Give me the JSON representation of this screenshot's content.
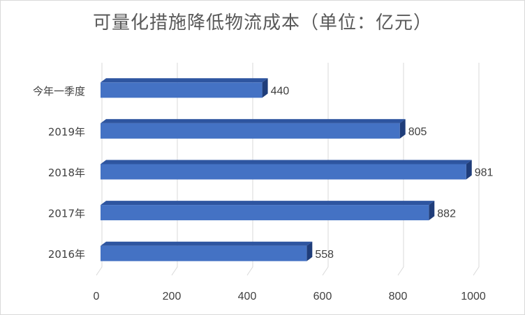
{
  "chart_data": {
    "type": "bar",
    "orientation": "horizontal",
    "title": "可量化措施降低物流成本（单位：亿元）",
    "categories": [
      "今年一季度",
      "2019年",
      "2018年",
      "2017年",
      "2016年"
    ],
    "values": [
      440,
      805,
      981,
      882,
      558
    ],
    "xlim": [
      0,
      1000
    ],
    "x_ticks": [
      "0",
      "200",
      "400",
      "600",
      "800",
      "1000"
    ],
    "grid": true,
    "legend": "none",
    "bar_color": "#4472c4",
    "bar_top_color": "#2e55a0",
    "bar_side_color": "#1f3d7a"
  }
}
